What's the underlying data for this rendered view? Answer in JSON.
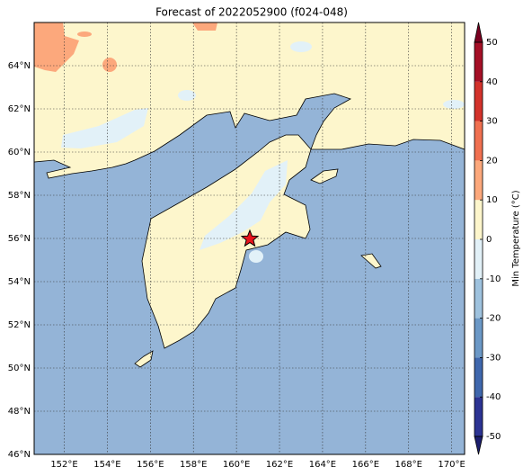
{
  "map": {
    "title": "Forecast of 2022052900 (f024-048)",
    "xlim": [
      150.6,
      170.6
    ],
    "ylim": [
      46,
      66
    ],
    "lon_ticks": [
      {
        "value": 152,
        "label": "152°E"
      },
      {
        "value": 154,
        "label": "154°E"
      },
      {
        "value": 156,
        "label": "156°E"
      },
      {
        "value": 158,
        "label": "158°E"
      },
      {
        "value": 160,
        "label": "160°E"
      },
      {
        "value": 162,
        "label": "162°E"
      },
      {
        "value": 164,
        "label": "164°E"
      },
      {
        "value": 166,
        "label": "166°E"
      },
      {
        "value": 168,
        "label": "168°E"
      },
      {
        "value": 170,
        "label": "170°E"
      }
    ],
    "lat_ticks": [
      {
        "value": 46,
        "label": "46°N"
      },
      {
        "value": 48,
        "label": "48°N"
      },
      {
        "value": 50,
        "label": "50°N"
      },
      {
        "value": 52,
        "label": "52°N"
      },
      {
        "value": 54,
        "label": "54°N"
      },
      {
        "value": 56,
        "label": "56°N"
      },
      {
        "value": 58,
        "label": "58°N"
      },
      {
        "value": 60,
        "label": "60°N"
      },
      {
        "value": 62,
        "label": "62°N"
      },
      {
        "value": 64,
        "label": "64°N"
      }
    ],
    "grid": true
  },
  "colorbar": {
    "label": "Min Temperature (°C)",
    "lim": [
      -50,
      50
    ],
    "ticks": [
      -50,
      -40,
      -30,
      -20,
      -10,
      0,
      10,
      20,
      30,
      40,
      50
    ],
    "colors": [
      "#2c3393",
      "#3f67ad",
      "#6b98c6",
      "#9ec2de",
      "#e2f1f8",
      "#fdf6cc",
      "#fca87c",
      "#f07050",
      "#d3322b",
      "#a50f26"
    ],
    "under_color": "#1c1e6e",
    "over_color": "#7a0020"
  }
}
